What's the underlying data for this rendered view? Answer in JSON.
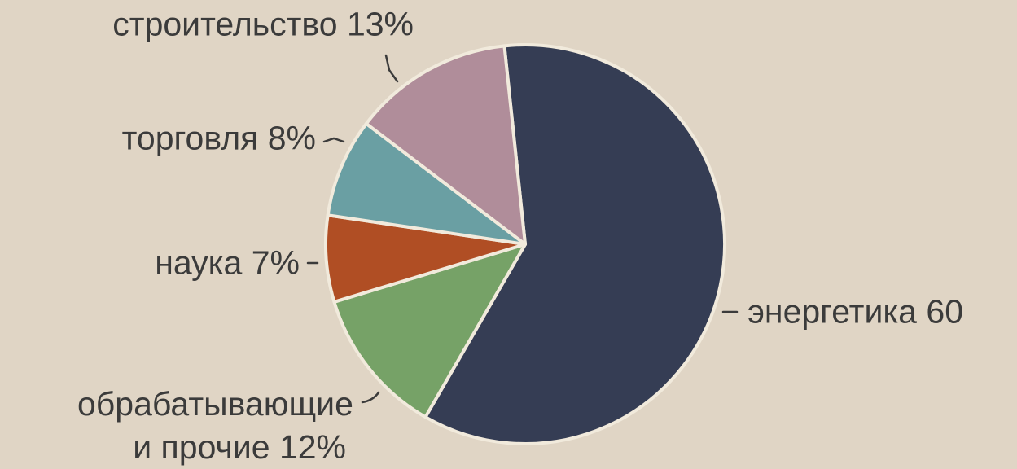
{
  "chart_data": {
    "type": "pie",
    "categories": [
      "энергетика",
      "обрабатывающие и прочие",
      "наука",
      "торговля",
      "строительство"
    ],
    "values": [
      60,
      12,
      7,
      8,
      13
    ],
    "value_labels": [
      "60",
      "12%",
      "7%",
      "8%",
      "13%"
    ],
    "colors": [
      "#353d54",
      "#76a267",
      "#b04e24",
      "#6a9fa3",
      "#b08d9a"
    ]
  }
}
